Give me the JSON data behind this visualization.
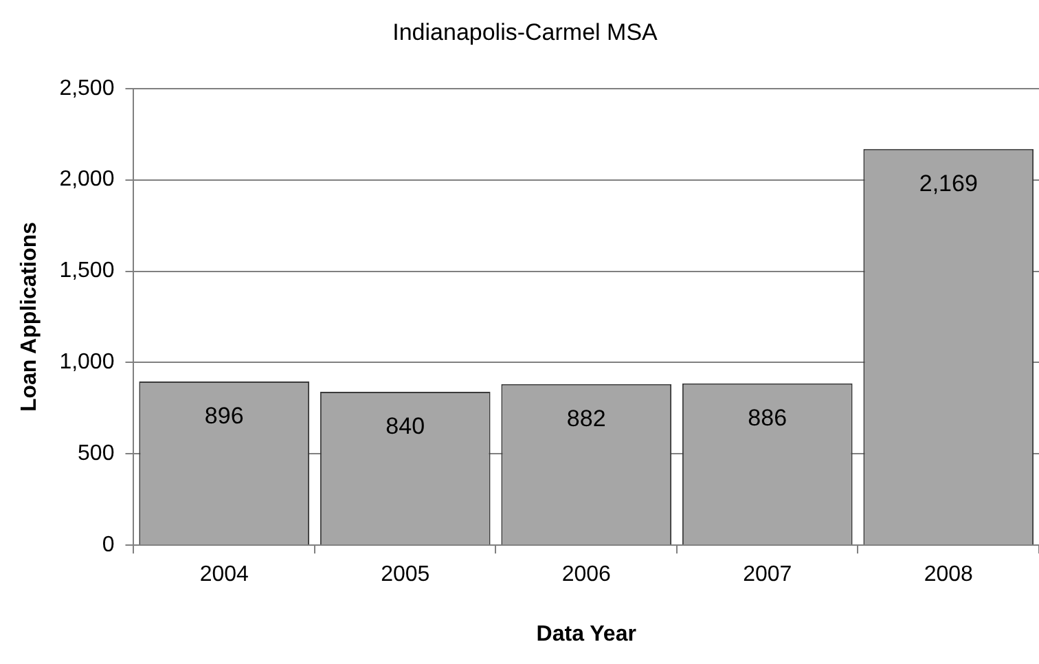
{
  "chart_data": {
    "type": "bar",
    "title": "Indianapolis-Carmel MSA",
    "xlabel": "Data Year",
    "ylabel": "Loan Applications",
    "categories": [
      "2004",
      "2005",
      "2006",
      "2007",
      "2008"
    ],
    "values": [
      896,
      840,
      882,
      886,
      2169
    ],
    "value_labels": [
      "896",
      "840",
      "882",
      "886",
      "2,169"
    ],
    "color": "#a6a6a6",
    "ylim": [
      0,
      2500
    ],
    "yticks": [
      0,
      500,
      {
        "value": 1000,
        "label": "1,000"
      },
      {
        "value": 1500,
        "label": "1,500"
      },
      {
        "value": 2000,
        "label": "2,000"
      },
      {
        "value": 2500,
        "label": "2,500"
      }
    ],
    "grid": "y"
  }
}
